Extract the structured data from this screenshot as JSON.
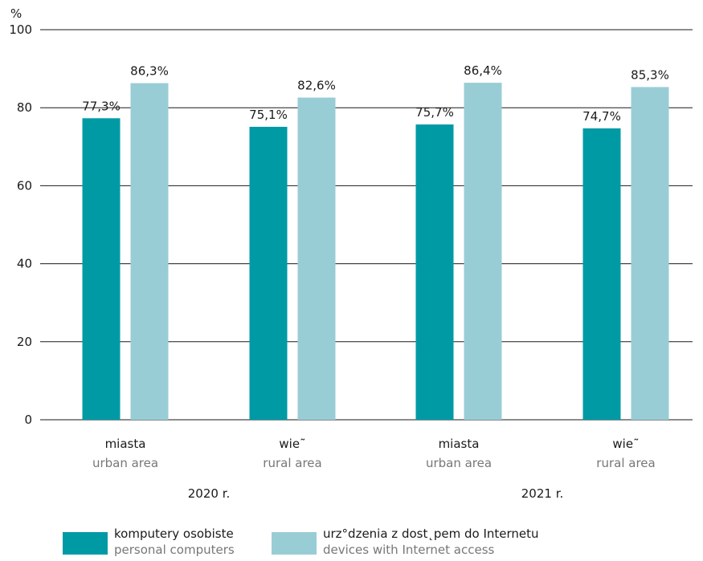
{
  "chart_data": {
    "type": "bar",
    "ylabel": "%",
    "ylim": [
      0,
      100
    ],
    "yticks": [
      0,
      20,
      40,
      60,
      80,
      100
    ],
    "grid": true,
    "categories": [
      {
        "label": "miasta",
        "sublabel": "urban area",
        "group": "2020 r."
      },
      {
        "label": "wie˜",
        "sublabel": "rural area",
        "group": "2020 r."
      },
      {
        "label": "miasta",
        "sublabel": "urban area",
        "group": "2021 r."
      },
      {
        "label": "wie˜",
        "sublabel": "rural area",
        "group": "2021 r."
      }
    ],
    "groups": [
      "2020 r.",
      "2021 r."
    ],
    "series": [
      {
        "name": "komputery osobiste",
        "name_en": "personal computers",
        "color": "#009aa5",
        "values": [
          77.3,
          75.1,
          75.7,
          74.7
        ],
        "labels": [
          "77,3%",
          "75,1%",
          "75,7%",
          "74,7%"
        ]
      },
      {
        "name": "urz°dzenia z dost˛pem do Internetu",
        "name_en": "devices with Internet access",
        "color": "#99cdd6",
        "values": [
          86.3,
          82.6,
          86.4,
          85.3
        ],
        "labels": [
          "86,3%",
          "82,6%",
          "86,4%",
          "85,3%"
        ]
      }
    ],
    "legend_position": "bottom"
  }
}
